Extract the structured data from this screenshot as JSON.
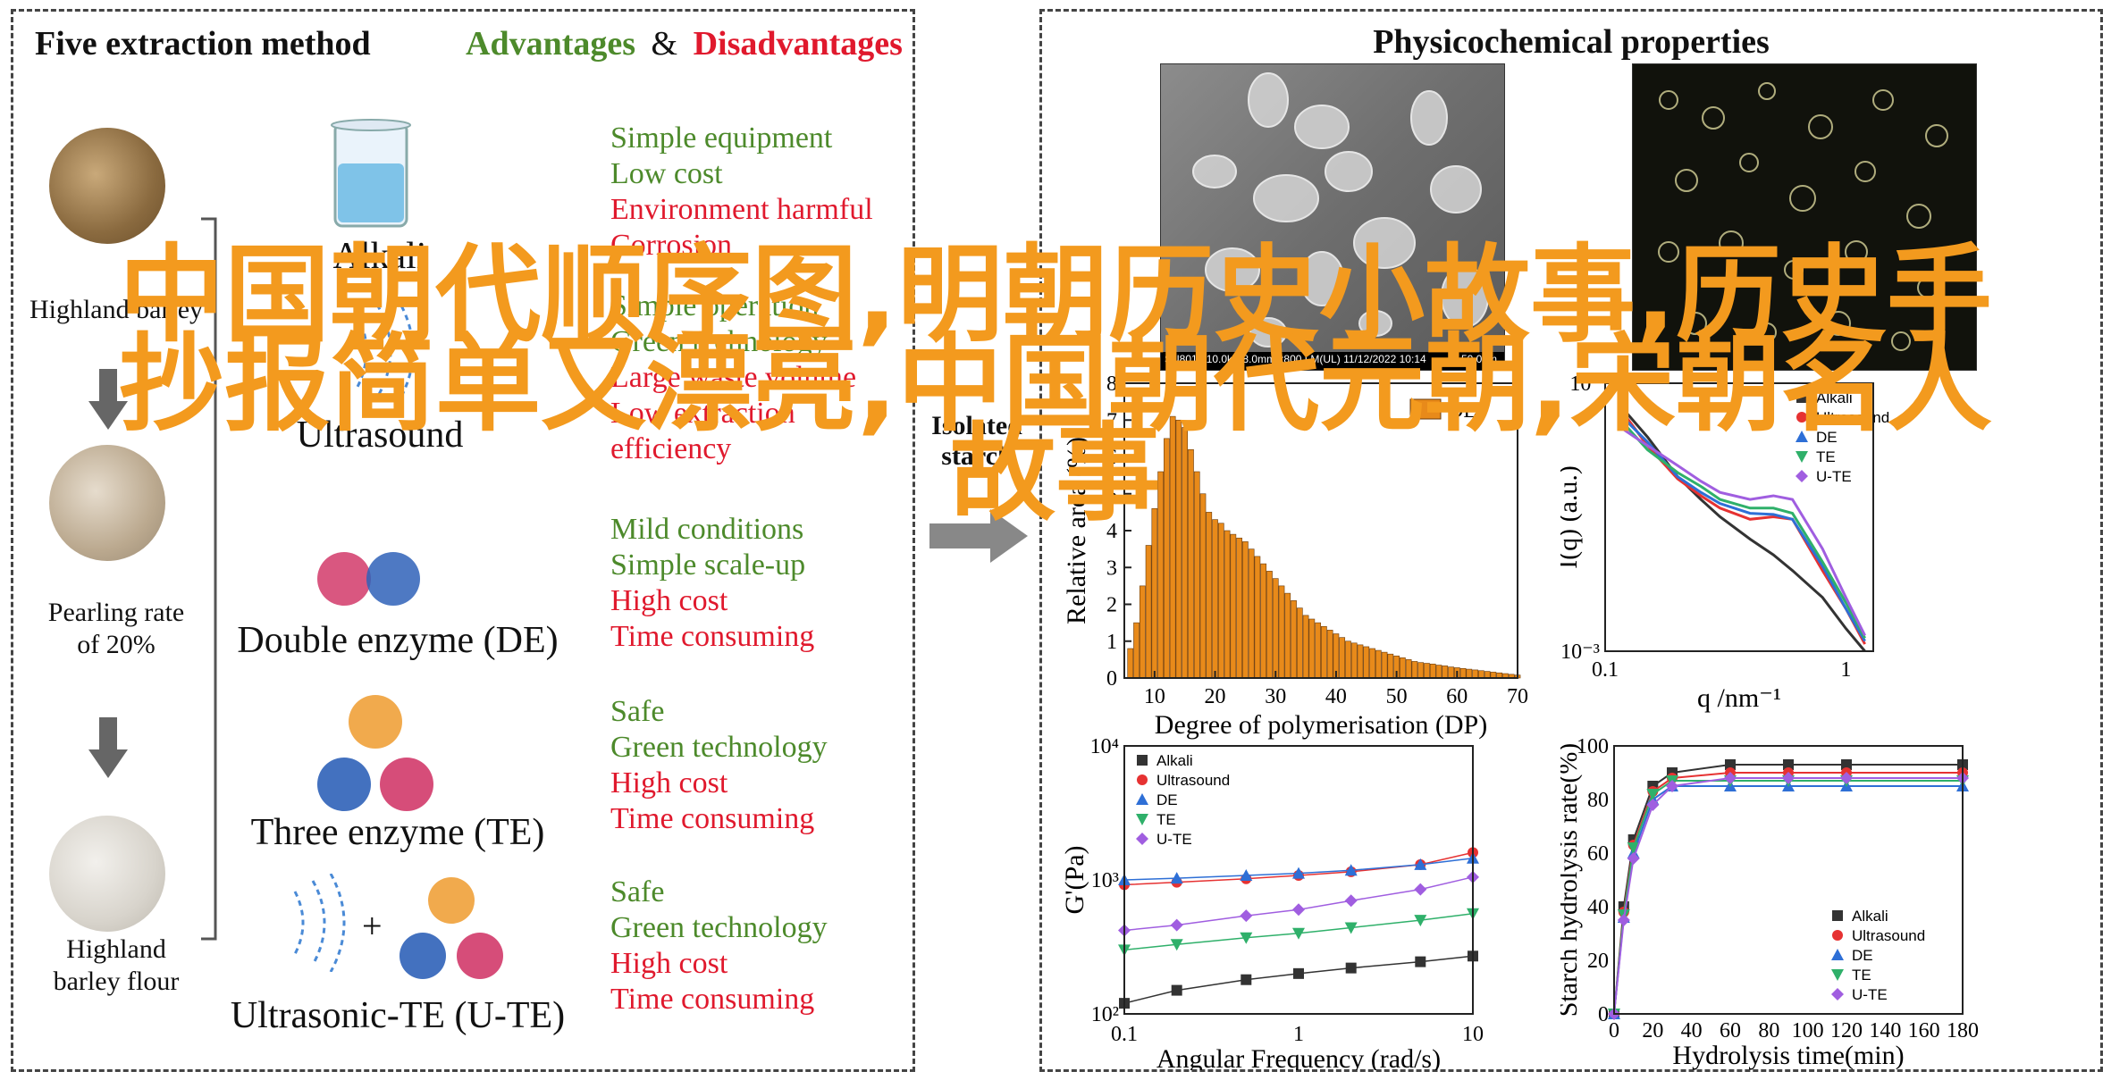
{
  "left": {
    "title": "Five extraction method",
    "adv_label": "Advantages",
    "amp": "&",
    "disadv_label": "Disadvantages",
    "sources": [
      "Highland barley",
      "Pearling rate",
      "of 20%",
      "Highland",
      "barley flour"
    ],
    "methods": [
      {
        "name": "Alkali",
        "adv": [
          "Simple equipment",
          "Low cost"
        ],
        "dis": [
          "Environment harmful",
          "Corrosion"
        ]
      },
      {
        "name": "Ultrasound",
        "adv": [
          "Simple operation",
          "Green technology"
        ],
        "dis": [
          "Large waste volume",
          "Low extraction",
          "efficiency"
        ]
      },
      {
        "name": "Double enzyme (DE)",
        "adv": [
          "Mild conditions",
          "Simple scale-up"
        ],
        "dis": [
          "High cost",
          "Time consuming"
        ]
      },
      {
        "name": "Three enzyme (TE)",
        "adv": [
          "Safe",
          "Green technology"
        ],
        "dis": [
          "High cost",
          "Time consuming"
        ]
      },
      {
        "name": "Ultrasonic-TE (U-TE)",
        "adv": [
          "Safe",
          "Green technology"
        ],
        "dis": [
          "High cost",
          "Time consuming"
        ]
      }
    ],
    "plus": "+",
    "isolated_lines": [
      "Isolated",
      "starch"
    ]
  },
  "right": {
    "title": "Physicochemical properties",
    "sem_caption": "SU8010 10.0kV 8.0mm x800 LM(UL) 11/12/2022 10:14",
    "sem_scale": "50.0um"
  },
  "colors": {
    "adv": "#4d8a2b",
    "dis": "#e0192d",
    "orange": "#f39a1e",
    "bar": "#e88a1a"
  },
  "chart_data": [
    {
      "type": "bar",
      "xlabel": "Degree of polymerisation (DP)",
      "ylabel": "Relative area (%)",
      "legend": [
        "DE"
      ],
      "xlim": [
        5,
        70
      ],
      "ylim": [
        0,
        8
      ],
      "xticks": [
        "10",
        "20",
        "30",
        "40",
        "50",
        "60",
        "70"
      ],
      "yticks": [
        "0",
        "1",
        "2",
        "3",
        "4",
        "5",
        "6",
        "7",
        "8"
      ],
      "x": [
        6,
        7,
        8,
        9,
        10,
        11,
        12,
        13,
        14,
        15,
        16,
        17,
        18,
        19,
        20,
        21,
        22,
        23,
        24,
        25,
        26,
        27,
        28,
        29,
        30,
        31,
        32,
        33,
        34,
        35,
        36,
        37,
        38,
        39,
        40,
        41,
        42,
        43,
        44,
        45,
        46,
        47,
        48,
        49,
        50,
        51,
        52,
        53,
        54,
        55,
        56,
        57,
        58,
        59,
        60,
        61,
        62,
        63,
        64,
        65,
        66,
        67,
        68,
        69,
        70
      ],
      "values": [
        0.8,
        1.5,
        2.5,
        3.6,
        4.6,
        5.6,
        6.5,
        7.1,
        7.0,
        6.8,
        6.2,
        5.6,
        5.0,
        4.5,
        4.3,
        4.2,
        4.0,
        3.9,
        3.8,
        3.7,
        3.5,
        3.3,
        3.1,
        2.9,
        2.7,
        2.5,
        2.3,
        2.1,
        1.9,
        1.7,
        1.6,
        1.5,
        1.4,
        1.3,
        1.2,
        1.1,
        1.0,
        0.95,
        0.9,
        0.85,
        0.8,
        0.75,
        0.7,
        0.65,
        0.6,
        0.55,
        0.5,
        0.45,
        0.42,
        0.4,
        0.38,
        0.35,
        0.33,
        0.3,
        0.28,
        0.26,
        0.24,
        0.22,
        0.2,
        0.18,
        0.16,
        0.14,
        0.12,
        0.1,
        0.08
      ]
    },
    {
      "type": "line",
      "xlabel": "q /nm⁻¹",
      "ylabel": "I(q) (a.u.)",
      "scale": "log-log",
      "xlim": [
        0.1,
        1.3
      ],
      "ylim": [
        0.001,
        1
      ],
      "xticks": [
        "0.1",
        "1"
      ],
      "yticks": [
        "10⁻³",
        "10⁰"
      ],
      "series": [
        {
          "name": "Alkali",
          "color": "#333333",
          "x": [
            0.12,
            0.15,
            0.2,
            0.25,
            0.3,
            0.4,
            0.5,
            0.6,
            0.8,
            1.0,
            1.2
          ],
          "y": [
            0.5,
            0.25,
            0.09,
            0.05,
            0.032,
            0.018,
            0.012,
            0.008,
            0.004,
            0.0018,
            0.001
          ]
        },
        {
          "name": "Ultrasound",
          "color": "#e63232",
          "x": [
            0.12,
            0.15,
            0.2,
            0.25,
            0.3,
            0.4,
            0.5,
            0.6,
            0.8,
            1.0,
            1.2
          ],
          "y": [
            0.45,
            0.2,
            0.085,
            0.055,
            0.04,
            0.03,
            0.032,
            0.03,
            0.008,
            0.003,
            0.0012
          ]
        },
        {
          "name": "DE",
          "color": "#2e6fd6",
          "x": [
            0.12,
            0.15,
            0.2,
            0.25,
            0.3,
            0.4,
            0.5,
            0.6,
            0.8,
            1.0,
            1.2
          ],
          "y": [
            0.4,
            0.22,
            0.09,
            0.06,
            0.045,
            0.035,
            0.034,
            0.03,
            0.009,
            0.003,
            0.0013
          ]
        },
        {
          "name": "TE",
          "color": "#2fb06a",
          "x": [
            0.12,
            0.15,
            0.2,
            0.25,
            0.3,
            0.4,
            0.5,
            0.6,
            0.8,
            1.0,
            1.2
          ],
          "y": [
            0.35,
            0.18,
            0.1,
            0.07,
            0.05,
            0.04,
            0.04,
            0.035,
            0.01,
            0.0035,
            0.0014
          ]
        },
        {
          "name": "U-TE",
          "color": "#a05ee0",
          "x": [
            0.12,
            0.15,
            0.2,
            0.25,
            0.3,
            0.4,
            0.5,
            0.6,
            0.8,
            1.0,
            1.2
          ],
          "y": [
            0.3,
            0.2,
            0.12,
            0.08,
            0.06,
            0.05,
            0.055,
            0.05,
            0.014,
            0.004,
            0.0015
          ]
        }
      ]
    },
    {
      "type": "scatter",
      "xlabel": "Angular Frequency (rad/s)",
      "ylabel": "G'(Pa)",
      "scale": "log-log",
      "xlim": [
        0.1,
        10
      ],
      "ylim": [
        100,
        10000
      ],
      "xticks": [
        "0.1",
        "1",
        "10"
      ],
      "yticks": [
        "10²",
        "10³",
        "10⁴"
      ],
      "series": [
        {
          "name": "Alkali",
          "color": "#333333",
          "marker": "square",
          "x": [
            0.1,
            0.2,
            0.5,
            1,
            2,
            5,
            10
          ],
          "y": [
            120,
            150,
            180,
            200,
            220,
            245,
            270
          ]
        },
        {
          "name": "Ultrasound",
          "color": "#e63232",
          "marker": "circle",
          "x": [
            0.1,
            0.2,
            0.5,
            1,
            2,
            5,
            10
          ],
          "y": [
            920,
            960,
            1020,
            1080,
            1150,
            1300,
            1600
          ]
        },
        {
          "name": "DE",
          "color": "#2e6fd6",
          "marker": "triangle-up",
          "x": [
            0.1,
            0.2,
            0.5,
            1,
            2,
            5,
            10
          ],
          "y": [
            1000,
            1030,
            1080,
            1120,
            1180,
            1300,
            1450
          ]
        },
        {
          "name": "TE",
          "color": "#2fb06a",
          "marker": "triangle-down",
          "x": [
            0.1,
            0.2,
            0.5,
            1,
            2,
            5,
            10
          ],
          "y": [
            300,
            330,
            370,
            400,
            440,
            500,
            560
          ]
        },
        {
          "name": "U-TE",
          "color": "#a05ee0",
          "marker": "diamond",
          "x": [
            0.1,
            0.2,
            0.5,
            1,
            2,
            5,
            10
          ],
          "y": [
            420,
            460,
            540,
            600,
            700,
            850,
            1050
          ]
        }
      ]
    },
    {
      "type": "line",
      "xlabel": "Hydrolysis time(min)",
      "ylabel": "Starch hydrolysis rate(%)",
      "xlim": [
        0,
        180
      ],
      "ylim": [
        0,
        100
      ],
      "xticks": [
        "0",
        "20",
        "40",
        "60",
        "80",
        "100",
        "120",
        "140",
        "160",
        "180"
      ],
      "yticks": [
        "0",
        "20",
        "40",
        "60",
        "80",
        "100"
      ],
      "series": [
        {
          "name": "Alkali",
          "color": "#333333",
          "marker": "square",
          "x": [
            0,
            5,
            10,
            20,
            30,
            60,
            90,
            120,
            180
          ],
          "y": [
            0,
            40,
            65,
            85,
            90,
            93,
            93,
            93,
            93
          ]
        },
        {
          "name": "Ultrasound",
          "color": "#e63232",
          "marker": "circle",
          "x": [
            0,
            5,
            10,
            20,
            30,
            60,
            90,
            120,
            180
          ],
          "y": [
            0,
            38,
            63,
            83,
            88,
            90,
            90,
            90,
            90
          ]
        },
        {
          "name": "DE",
          "color": "#2e6fd6",
          "marker": "triangle-up",
          "x": [
            0,
            5,
            10,
            20,
            30,
            60,
            90,
            120,
            180
          ],
          "y": [
            0,
            36,
            60,
            80,
            85,
            85,
            85,
            85,
            85
          ]
        },
        {
          "name": "TE",
          "color": "#2fb06a",
          "marker": "triangle-down",
          "x": [
            0,
            5,
            10,
            20,
            30,
            60,
            90,
            120,
            180
          ],
          "y": [
            0,
            37,
            62,
            82,
            87,
            87,
            87,
            87,
            87
          ]
        },
        {
          "name": "U-TE",
          "color": "#a05ee0",
          "marker": "diamond",
          "x": [
            0,
            5,
            10,
            20,
            30,
            60,
            90,
            120,
            180
          ],
          "y": [
            0,
            35,
            58,
            78,
            85,
            88,
            88,
            88,
            88
          ]
        }
      ]
    }
  ],
  "overlay": {
    "line1": "中国朝代顺序图,明朝历史小故事,历史手",
    "line2": "抄报简单又漂亮,中国朝代元朝,宋朝名人",
    "line3": "故事"
  }
}
